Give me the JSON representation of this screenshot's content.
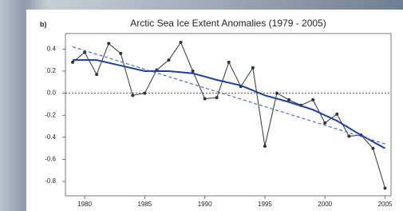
{
  "chart_data": {
    "type": "line",
    "panel_label": "b)",
    "title": "Arctic Sea Ice Extent Anomalies (1979 - 2005)",
    "xlim": [
      1978.4,
      2005.5
    ],
    "ylim": [
      -0.93,
      0.54
    ],
    "xticks": [
      1980,
      1985,
      1990,
      1995,
      2000,
      2005
    ],
    "yticks": [
      0.4,
      0.2,
      {
        "value": 0,
        "label": "0.0"
      },
      -0.2,
      -0.4,
      -0.6,
      -0.8
    ],
    "zero_line": true,
    "series": [
      {
        "color": "#333333",
        "markers": true,
        "dashed": false,
        "width": 1,
        "x": [
          1979,
          1980,
          1981,
          1982,
          1983,
          1984,
          1985,
          1986,
          1987,
          1988,
          1989,
          1990,
          1991,
          1992,
          1993,
          1994,
          1995,
          1996,
          1997,
          1998,
          1999,
          2000,
          2001,
          2002,
          2003,
          2004,
          2005
        ],
        "values": [
          0.28,
          0.37,
          0.17,
          0.45,
          0.36,
          -0.02,
          0.0,
          0.21,
          0.3,
          0.46,
          0.2,
          -0.05,
          -0.04,
          0.28,
          0.06,
          0.23,
          -0.48,
          0.0,
          -0.06,
          -0.11,
          -0.06,
          -0.27,
          -0.19,
          -0.39,
          -0.38,
          -0.5,
          -0.86
        ]
      },
      {
        "color": "#1f3f9a",
        "markers": false,
        "dashed": false,
        "width": 2,
        "x": [
          1979,
          1981,
          1983,
          1985,
          1987,
          1989,
          1991,
          1993,
          1995,
          1997,
          1999,
          2001,
          2003,
          2005
        ],
        "values": [
          0.3,
          0.3,
          0.25,
          0.2,
          0.2,
          0.18,
          0.12,
          0.07,
          -0.02,
          -0.08,
          -0.15,
          -0.25,
          -0.38,
          -0.5
        ]
      },
      {
        "color": "#4a6cc0",
        "markers": false,
        "dashed": true,
        "width": 1.2,
        "x": [
          1979,
          2005
        ],
        "values": [
          0.42,
          -0.46
        ]
      }
    ]
  }
}
